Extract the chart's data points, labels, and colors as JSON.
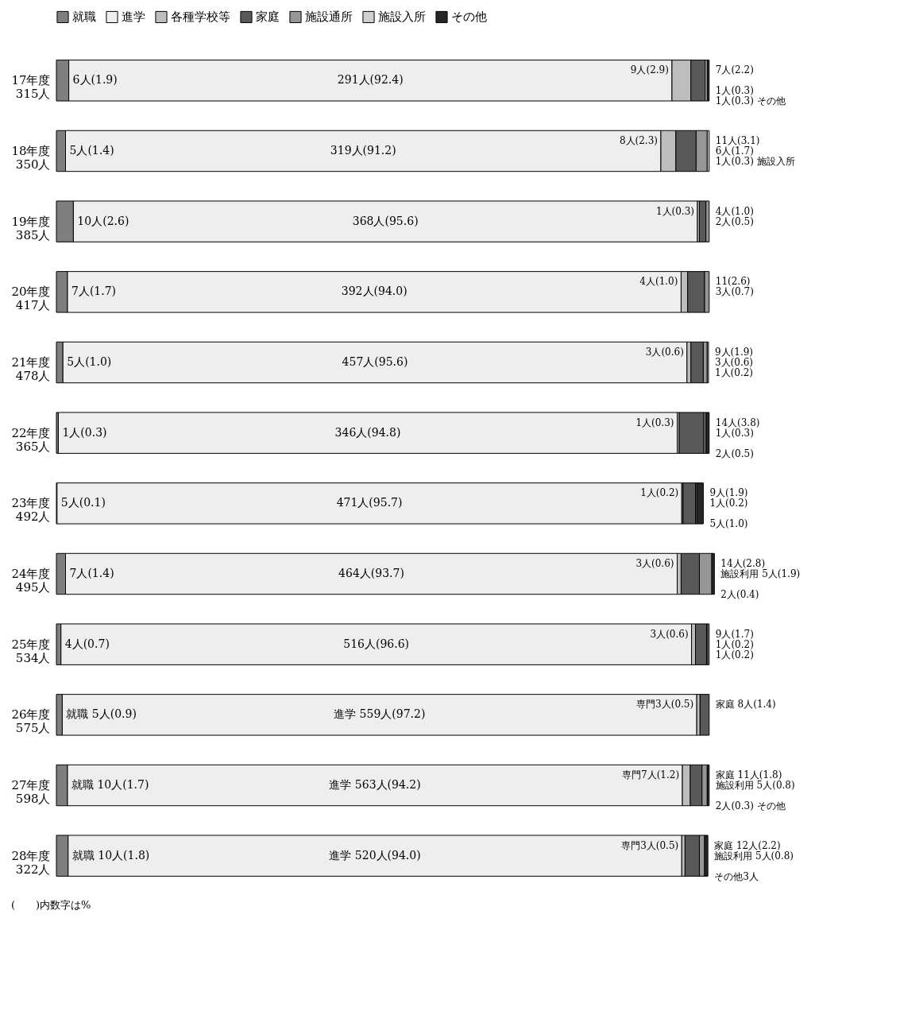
{
  "chart_data": {
    "type": "bar",
    "orientation": "horizontal",
    "stacked": true,
    "legend": "top",
    "tick_labels": "y",
    "xlim": [
      0,
      101
    ],
    "categories": [
      "17年度 315人",
      "18年度 350人",
      "19年度 385人",
      "20年度 417人",
      "21年度 478人",
      "22年度 365人",
      "23年度 492人",
      "24年度 495人",
      "25年度 534人",
      "26年度 575人",
      "27年度 598人",
      "28年度 322人"
    ],
    "series": [
      {
        "name": "就職",
        "color": "#7f7f7f",
        "values": [
          1.9,
          1.4,
          2.6,
          1.7,
          1.0,
          0.3,
          0.1,
          1.4,
          0.7,
          0.9,
          1.7,
          1.8
        ],
        "value_labels": [
          "6人(1.9)",
          "5人(1.4)",
          "10人(2.6)",
          "7人(1.7)",
          "5人(1.0)",
          "1人(0.3)",
          "5人(0.1)",
          "7人(1.4)",
          "4人(0.7)",
          "就職 5人(0.9)",
          "就職 10人(1.7)",
          "就職 10人(1.8)"
        ]
      },
      {
        "name": "進学",
        "color": "#eeeeee",
        "values": [
          92.4,
          91.2,
          95.6,
          94.0,
          95.6,
          94.8,
          95.7,
          93.7,
          96.6,
          97.2,
          94.2,
          94.0
        ],
        "value_labels": [
          "291人(92.4)",
          "319人(91.2)",
          "368人(95.6)",
          "392人(94.0)",
          "457人(95.6)",
          "346人(94.8)",
          "471人(95.7)",
          "464人(93.7)",
          "516人(96.6)",
          "進学 559人(97.2)",
          "進学 563人(94.2)",
          "進学 520人(94.0)"
        ]
      },
      {
        "name": "各種学校等",
        "color": "#bdbdbd",
        "values": [
          2.9,
          2.3,
          0.3,
          1.0,
          0.6,
          0.3,
          0.2,
          0.6,
          0.6,
          0.5,
          1.2,
          0.5
        ],
        "value_labels": [
          "9人(2.9)",
          "8人(2.3)",
          "1人(0.3)",
          "4人(1.0)",
          "3人(0.6)",
          "1人(0.3)",
          "1人(0.2)",
          "3人(0.6)",
          "3人(0.6)",
          "専門3人(0.5)",
          "専門7人(1.2)",
          "専門3人(0.5)"
        ]
      },
      {
        "name": "家庭",
        "color": "#595959",
        "values": [
          2.2,
          3.1,
          1.0,
          2.6,
          1.9,
          3.8,
          1.9,
          2.8,
          1.7,
          1.4,
          1.8,
          2.2
        ],
        "value_labels": [
          "7人(2.2)",
          "11人(3.1)",
          "4人(1.0)",
          "11(2.6)",
          "9人(1.9)",
          "14人(3.8)",
          "9人(1.9)",
          "14人(2.8)",
          "9人(1.7)",
          "家庭 8人(1.4)",
          "家庭 11人(1.8)",
          "家庭 12人(2.2)"
        ]
      },
      {
        "name": "施設通所",
        "color": "#969696",
        "values": [
          null,
          1.7,
          0.5,
          0.7,
          0.6,
          0.3,
          0.2,
          1.9,
          0.2,
          null,
          0.8,
          0.8
        ],
        "value_labels": [
          null,
          "6人(1.7)",
          "2人(0.5)",
          "3人(0.7)",
          "3人(0.6)",
          "1人(0.3)",
          "1人(0.2)",
          "施設利用 5人(1.9)",
          "1人(0.2)",
          null,
          "施設利用 5人(0.8)",
          "施設利用 5人(0.8)"
        ]
      },
      {
        "name": "施設入所",
        "color": "#d0d0d0",
        "values": [
          0.3,
          0.3,
          null,
          null,
          0.2,
          null,
          null,
          null,
          0.2,
          null,
          null,
          null
        ],
        "value_labels": [
          "1人(0.3)",
          "1人(0.3) 施設入所",
          null,
          null,
          "1人(0.2)",
          null,
          null,
          null,
          "1人(0.2)",
          null,
          null,
          null
        ]
      },
      {
        "name": "その他",
        "color": "#262626",
        "values": [
          0.3,
          null,
          null,
          null,
          null,
          0.5,
          1.0,
          0.4,
          null,
          null,
          0.3,
          0.5
        ],
        "value_labels": [
          "1人(0.3) その他",
          null,
          null,
          null,
          null,
          "2人(0.5)",
          "5人(1.0)",
          "2人(0.4)",
          null,
          null,
          "2人(0.3) その他",
          "その他3人"
        ]
      }
    ],
    "annotations": [
      "(　　)内数字は%"
    ]
  }
}
